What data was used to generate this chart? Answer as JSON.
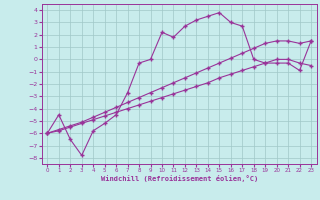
{
  "xlabel": "Windchill (Refroidissement éolien,°C)",
  "x_values": [
    0,
    1,
    2,
    3,
    4,
    5,
    6,
    7,
    8,
    9,
    10,
    11,
    12,
    13,
    14,
    15,
    16,
    17,
    18,
    19,
    20,
    21,
    22,
    23
  ],
  "line1_y": [
    -6.0,
    -4.5,
    -6.5,
    -7.8,
    -5.8,
    -5.2,
    -4.5,
    -2.7,
    -0.3,
    0.0,
    2.2,
    1.8,
    2.7,
    3.2,
    3.5,
    3.8,
    3.0,
    2.7,
    0.0,
    -0.3,
    -0.3,
    -0.3,
    -0.9,
    1.5
  ],
  "line2_y": [
    -6.0,
    -5.8,
    -5.5,
    -5.2,
    -4.9,
    -4.6,
    -4.3,
    -4.0,
    -3.7,
    -3.4,
    -3.1,
    -2.8,
    -2.5,
    -2.2,
    -1.9,
    -1.5,
    -1.2,
    -0.9,
    -0.6,
    -0.3,
    0.0,
    0.0,
    -0.3,
    -0.5
  ],
  "line3_y": [
    -6.0,
    -5.7,
    -5.4,
    -5.1,
    -4.7,
    -4.3,
    -3.9,
    -3.5,
    -3.1,
    -2.7,
    -2.3,
    -1.9,
    -1.5,
    -1.1,
    -0.7,
    -0.3,
    0.1,
    0.5,
    0.9,
    1.3,
    1.5,
    1.5,
    1.3,
    1.5
  ],
  "background_color": "#c8ecec",
  "grid_color": "#a0c8c8",
  "line_color": "#993399",
  "ylim": [
    -8.5,
    4.5
  ],
  "xlim": [
    -0.5,
    23.5
  ],
  "yticks": [
    4,
    3,
    2,
    1,
    0,
    -1,
    -2,
    -3,
    -4,
    -5,
    -6,
    -7,
    -8
  ],
  "xticks": [
    0,
    1,
    2,
    3,
    4,
    5,
    6,
    7,
    8,
    9,
    10,
    11,
    12,
    13,
    14,
    15,
    16,
    17,
    18,
    19,
    20,
    21,
    22,
    23
  ]
}
